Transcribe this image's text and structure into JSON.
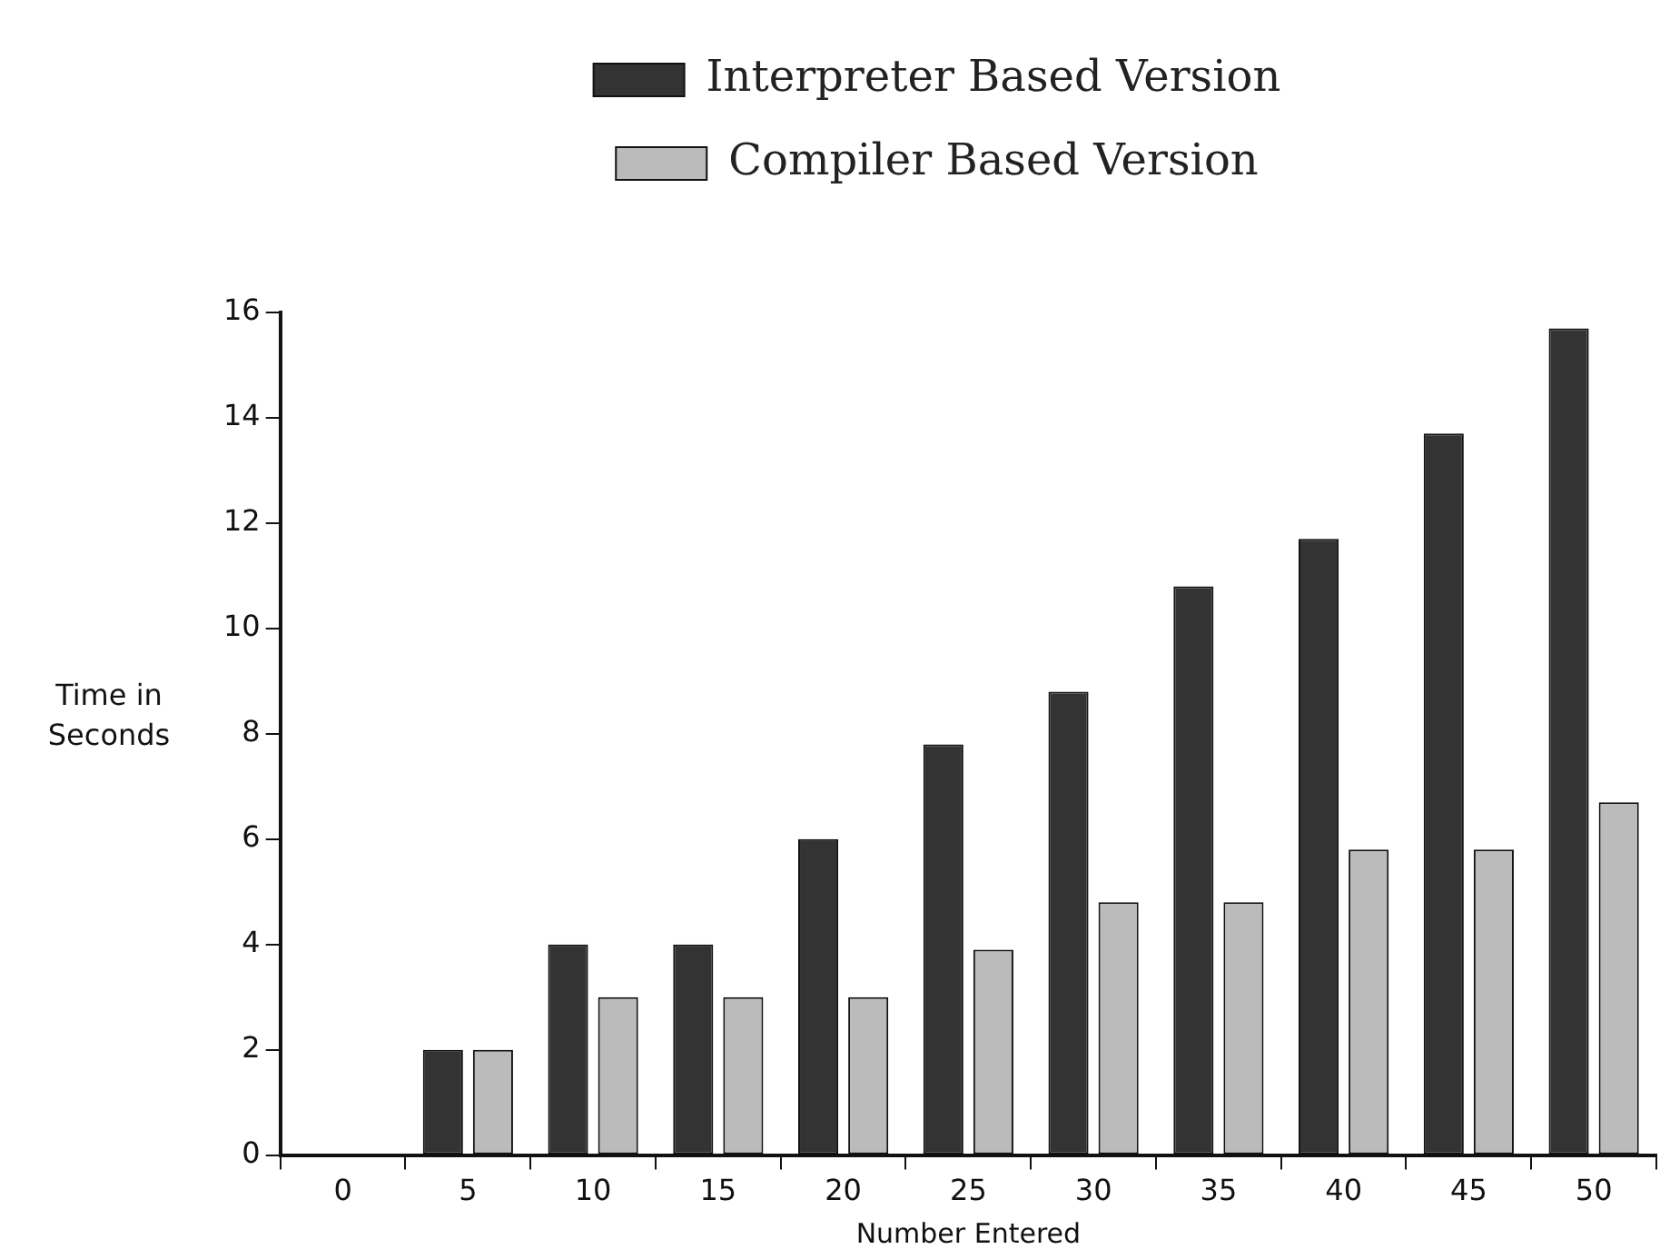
{
  "chart_data": {
    "type": "bar",
    "xlabel": "Number Entered",
    "ylabel": "Time in Seconds",
    "categories": [
      "0",
      "5",
      "10",
      "15",
      "20",
      "25",
      "30",
      "35",
      "40",
      "45",
      "50"
    ],
    "series": [
      {
        "name": "Interpreter Based Version",
        "color": "#333333",
        "values": [
          0,
          2,
          4,
          4,
          6,
          7.8,
          8.8,
          10.8,
          11.7,
          13.7,
          15.7
        ]
      },
      {
        "name": "Compiler Based Version",
        "color": "#bbbbbb",
        "values": [
          0,
          2,
          3,
          3,
          3,
          3.9,
          4.8,
          4.8,
          5.8,
          5.8,
          6.7
        ]
      }
    ],
    "ylim": [
      0,
      16
    ],
    "yticks": [
      0,
      2,
      4,
      6,
      8,
      10,
      12,
      14,
      16
    ],
    "grid": false,
    "legend": "top"
  }
}
